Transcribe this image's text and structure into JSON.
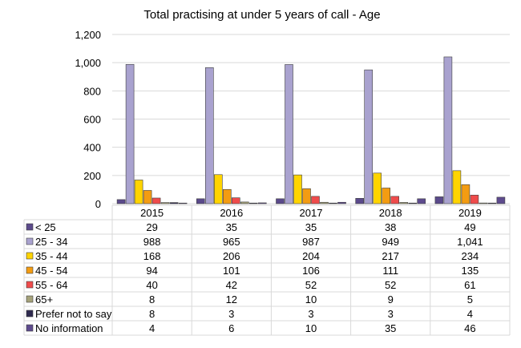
{
  "chart_data": {
    "type": "bar",
    "title": "Total practising at under 5 years of call - Age",
    "categories": [
      "2015",
      "2016",
      "2017",
      "2018",
      "2019"
    ],
    "ylim": [
      0,
      1200
    ],
    "yticks": [
      "0",
      "200",
      "400",
      "600",
      "800",
      "1,000",
      "1,200"
    ],
    "ytick_values": [
      0,
      200,
      400,
      600,
      800,
      1000,
      1200
    ],
    "grid": true,
    "legend_placement": "data-table-left",
    "series": [
      {
        "name": "< 25",
        "color": "#5b4a8b",
        "values": [
          29,
          35,
          35,
          38,
          49
        ],
        "labels": [
          "29",
          "35",
          "35",
          "38",
          "49"
        ]
      },
      {
        "name": "25 - 34",
        "color": "#a9a2cf",
        "values": [
          988,
          965,
          987,
          949,
          1041
        ],
        "labels": [
          "988",
          "965",
          "987",
          "949",
          "1,041"
        ]
      },
      {
        "name": "35 - 44",
        "color": "#ffd400",
        "values": [
          168,
          206,
          204,
          217,
          234
        ],
        "labels": [
          "168",
          "206",
          "204",
          "217",
          "234"
        ]
      },
      {
        "name": "45 - 54",
        "color": "#f39c12",
        "values": [
          94,
          101,
          106,
          111,
          135
        ],
        "labels": [
          "94",
          "101",
          "106",
          "111",
          "135"
        ]
      },
      {
        "name": "55 - 64",
        "color": "#ef4b4b",
        "values": [
          40,
          42,
          52,
          52,
          61
        ],
        "labels": [
          "40",
          "42",
          "52",
          "52",
          "61"
        ]
      },
      {
        "name": "65+",
        "color": "#a5a27a",
        "values": [
          8,
          12,
          10,
          9,
          5
        ],
        "labels": [
          "8",
          "12",
          "10",
          "9",
          "5"
        ]
      },
      {
        "name": "Prefer not to say",
        "color": "#2e2a4f",
        "values": [
          8,
          3,
          3,
          3,
          4
        ],
        "labels": [
          "8",
          "3",
          "3",
          "3",
          "4"
        ]
      },
      {
        "name": "No information",
        "color": "#5e4b8e",
        "values": [
          4,
          6,
          10,
          35,
          46
        ],
        "labels": [
          "4",
          "6",
          "10",
          "35",
          "46"
        ]
      }
    ]
  }
}
